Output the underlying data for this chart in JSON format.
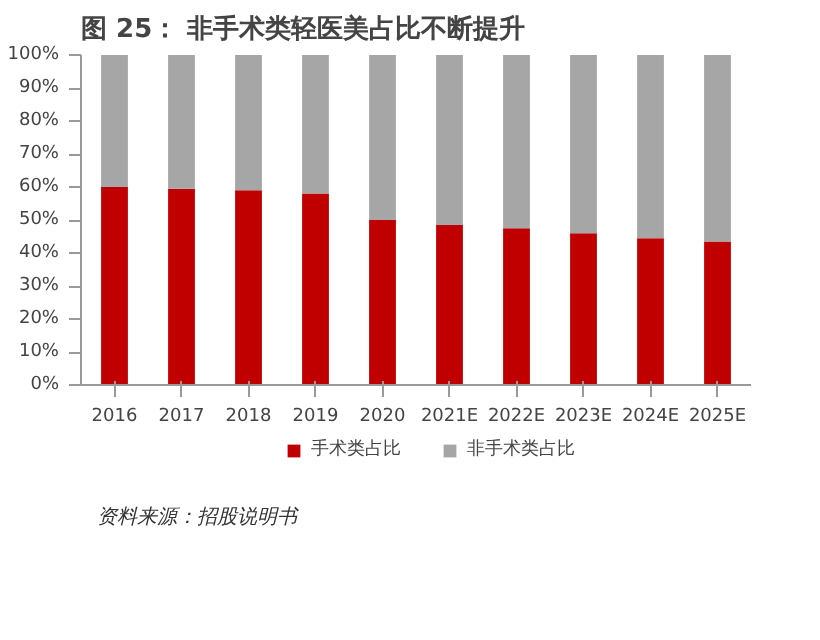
{
  "chart_data": {
    "type": "bar",
    "stacked": true,
    "title": "图 25：    非手术类轻医美占比不断提升",
    "categories": [
      "2016",
      "2017",
      "2018",
      "2019",
      "2020",
      "2021E",
      "2022E",
      "2023E",
      "2024E",
      "2025E"
    ],
    "series": [
      {
        "name": "手术类占比",
        "color": "#c00000",
        "values": [
          60,
          59.5,
          59,
          58,
          50,
          48.5,
          47.5,
          46,
          44.5,
          43.5
        ]
      },
      {
        "name": "非手术类占比",
        "color": "#a6a6a6",
        "values": [
          40,
          40.5,
          41,
          42,
          50,
          51.5,
          52.5,
          54,
          55.5,
          56.5
        ]
      }
    ],
    "ylim": [
      0,
      100
    ],
    "yticks": [
      {
        "value": 0,
        "label": "0%"
      },
      {
        "value": 10,
        "label": "10%"
      },
      {
        "value": 20,
        "label": "20%"
      },
      {
        "value": 30,
        "label": "30%"
      },
      {
        "value": 40,
        "label": "40%"
      },
      {
        "value": 50,
        "label": "50%"
      },
      {
        "value": 60,
        "label": "60%"
      },
      {
        "value": 70,
        "label": "70%"
      },
      {
        "value": 80,
        "label": "80%"
      },
      {
        "value": 90,
        "label": "90%"
      },
      {
        "value": 100,
        "label": "100%"
      }
    ],
    "grid": false,
    "legend": "bottom",
    "annotations": [
      "资料来源：招股说明书"
    ]
  }
}
